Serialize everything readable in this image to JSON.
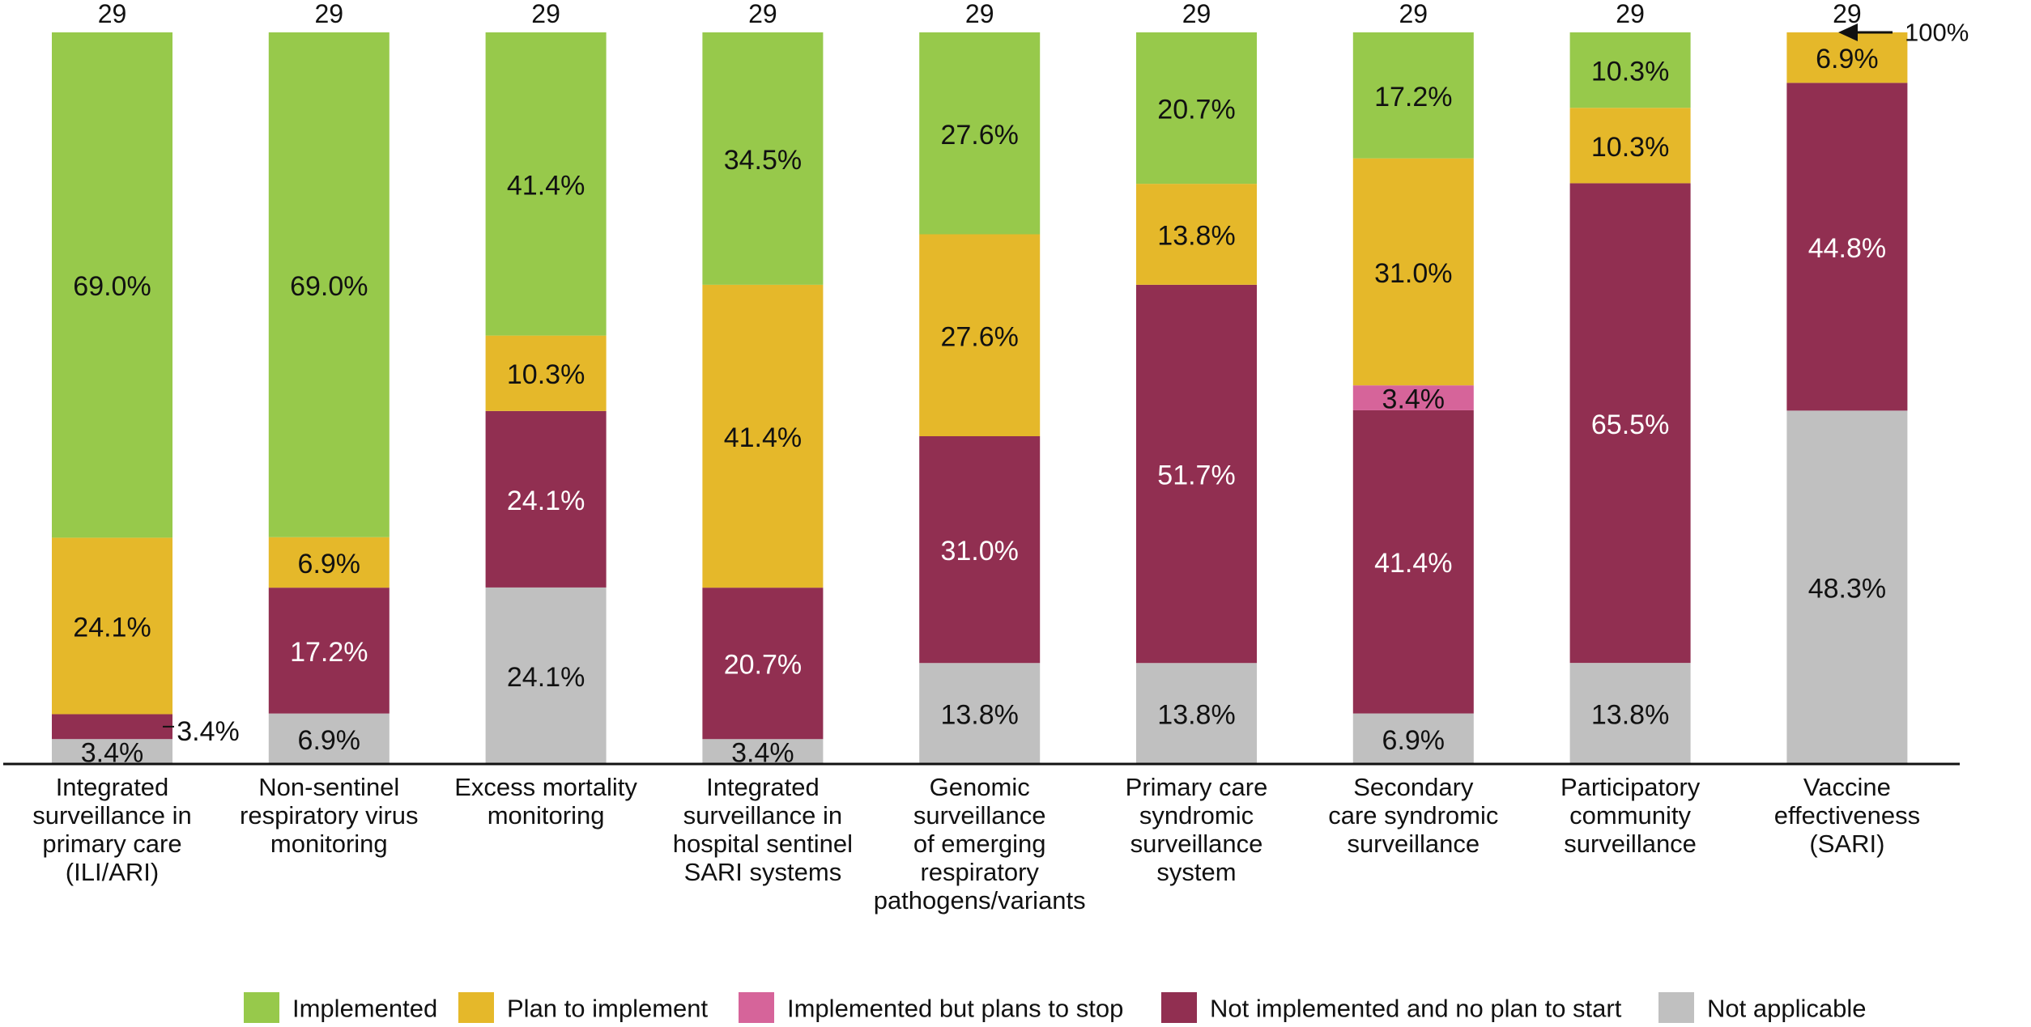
{
  "chart_data": {
    "type": "bar",
    "stacked": true,
    "title": "",
    "xlabel": "",
    "ylabel": "",
    "ylim": [
      0,
      100
    ],
    "grid": false,
    "legend_position": "bottom",
    "annotation": "100%",
    "categories": [
      [
        "Integrated",
        "surveillance in",
        "primary care",
        "(ILI/ARI)"
      ],
      [
        "Non-sentinel",
        "respiratory virus",
        "monitoring"
      ],
      [
        "Excess mortality",
        "monitoring"
      ],
      [
        "Integrated",
        "surveillance in",
        "hospital sentinel",
        "SARI systems"
      ],
      [
        "Genomic",
        "surveillance",
        "of emerging",
        "respiratory",
        "pathogens/variants"
      ],
      [
        "Primary care",
        "syndromic",
        "surveillance",
        "system"
      ],
      [
        "Secondary",
        "care syndromic",
        "surveillance"
      ],
      [
        "Participatory",
        "community",
        "surveillance"
      ],
      [
        "Vaccine",
        "effectiveness",
        "(SARI)"
      ]
    ],
    "n_labels": [
      "29",
      "29",
      "29",
      "29",
      "29",
      "29",
      "29",
      "29",
      "29"
    ],
    "series": [
      {
        "name": "Not applicable",
        "color": "#c0c0c0",
        "label_color": "#111111",
        "values": [
          3.4,
          6.9,
          24.1,
          3.4,
          13.8,
          13.8,
          6.9,
          13.8,
          48.3
        ]
      },
      {
        "name": "Not implemented and no plan to start",
        "color": "#912f51",
        "label_color": "#ffffff",
        "values": [
          3.4,
          17.2,
          24.1,
          20.7,
          31.0,
          51.7,
          41.4,
          65.5,
          44.8
        ]
      },
      {
        "name": "Implemented but plans to stop",
        "color": "#d6649a",
        "label_color": "#111111",
        "values": [
          0,
          0,
          0,
          0,
          0,
          0,
          3.4,
          0,
          0
        ]
      },
      {
        "name": "Plan to implement",
        "color": "#e5b82a",
        "label_color": "#111111",
        "values": [
          24.1,
          6.9,
          10.3,
          41.4,
          27.6,
          13.8,
          31.0,
          10.3,
          6.9
        ]
      },
      {
        "name": "Implemented",
        "color": "#97c94b",
        "label_color": "#111111",
        "values": [
          69.0,
          69.0,
          41.4,
          34.5,
          27.6,
          20.7,
          17.2,
          10.3,
          0
        ]
      }
    ],
    "legend_order": [
      "Implemented",
      "Plan to implement",
      "Implemented but plans to stop",
      "Not implemented and no plan to start",
      "Not applicable"
    ]
  }
}
